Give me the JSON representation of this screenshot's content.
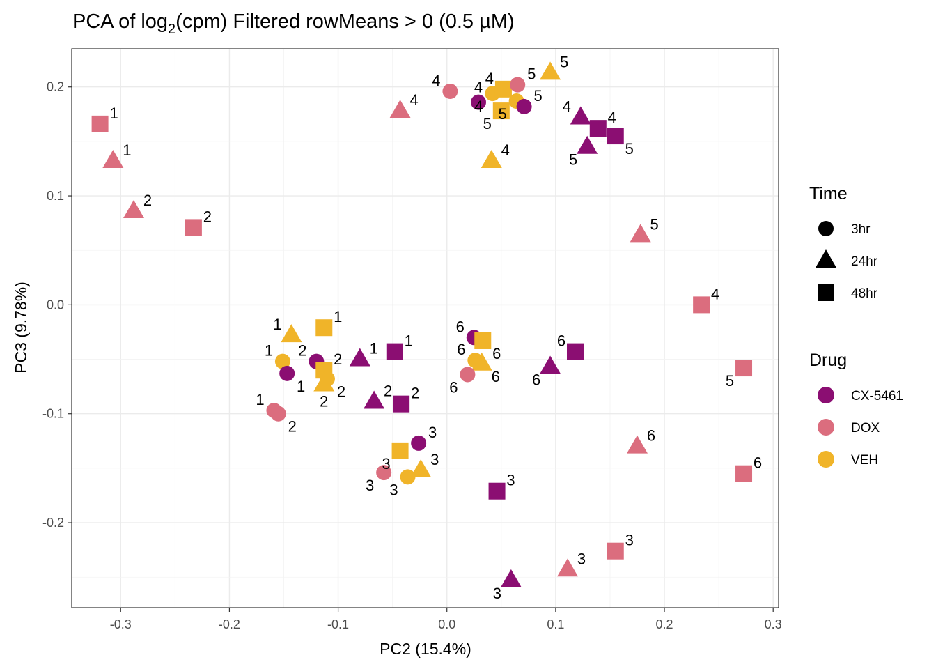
{
  "chart_data": {
    "type": "scatter",
    "title_prefix": "PCA of log",
    "title_subscript": "2",
    "title_suffix": "(cpm) Filtered rowMeans > 0 (0.5 µM)",
    "xlabel": "PC2 (15.4%)",
    "ylabel": "PC3 (9.78%)",
    "xlim": [
      -0.345,
      0.305
    ],
    "ylim": [
      -0.278,
      0.235
    ],
    "xticks": [
      -0.3,
      -0.2,
      -0.1,
      0.0,
      0.1,
      0.2,
      0.3
    ],
    "xtick_labels": [
      "-0.3",
      "-0.2",
      "-0.1",
      "0.0",
      "0.1",
      "0.2",
      "0.3"
    ],
    "yticks": [
      -0.2,
      -0.1,
      0.0,
      0.1,
      0.2
    ],
    "ytick_labels": [
      "-0.2",
      "-0.1",
      "0.0",
      "0.1",
      "0.2"
    ],
    "grid": true,
    "colors": {
      "CX-5461": "#8B0E72",
      "DOX": "#DB6D7E",
      "VEH": "#F0B429"
    },
    "legend": {
      "placement": "right",
      "time_title": "Time",
      "time_items": [
        {
          "label": "3hr",
          "shape": "circle"
        },
        {
          "label": "24hr",
          "shape": "triangle"
        },
        {
          "label": "48hr",
          "shape": "square"
        }
      ],
      "drug_title": "Drug",
      "drug_items": [
        {
          "label": "CX-5461"
        },
        {
          "label": "DOX"
        },
        {
          "label": "VEH"
        }
      ]
    },
    "points": [
      {
        "x": -0.319,
        "y": 0.166,
        "drug": "DOX",
        "time": "48hr",
        "label": "1",
        "pos": "ur"
      },
      {
        "x": -0.307,
        "y": 0.132,
        "drug": "DOX",
        "time": "24hr",
        "label": "1",
        "pos": "ur"
      },
      {
        "x": -0.288,
        "y": 0.086,
        "drug": "DOX",
        "time": "24hr",
        "label": "2",
        "pos": "ur"
      },
      {
        "x": -0.233,
        "y": 0.071,
        "drug": "DOX",
        "time": "48hr",
        "label": "2",
        "pos": "ur"
      },
      {
        "x": -0.043,
        "y": 0.178,
        "drug": "DOX",
        "time": "24hr",
        "label": "4",
        "pos": "ur"
      },
      {
        "x": 0.003,
        "y": 0.196,
        "drug": "DOX",
        "time": "3hr",
        "label": "4",
        "pos": "ul"
      },
      {
        "x": 0.029,
        "y": 0.186,
        "drug": "CX-5461",
        "time": "3hr",
        "label": "4",
        "pos": "u"
      },
      {
        "x": 0.042,
        "y": 0.194,
        "drug": "VEH",
        "time": "3hr",
        "label": "4",
        "pos": "dl"
      },
      {
        "x": 0.052,
        "y": 0.198,
        "drug": "VEH",
        "time": "48hr",
        "label": "4",
        "pos": "ul"
      },
      {
        "x": 0.05,
        "y": 0.178,
        "drug": "VEH",
        "time": "48hr",
        "label": "5",
        "pos": "dl"
      },
      {
        "x": 0.064,
        "y": 0.187,
        "drug": "VEH",
        "time": "3hr",
        "label": "5",
        "pos": "dl"
      },
      {
        "x": 0.065,
        "y": 0.202,
        "drug": "DOX",
        "time": "3hr",
        "label": "5",
        "pos": "ur"
      },
      {
        "x": 0.071,
        "y": 0.182,
        "drug": "CX-5461",
        "time": "3hr",
        "label": "5",
        "pos": "ur"
      },
      {
        "x": 0.095,
        "y": 0.213,
        "drug": "VEH",
        "time": "24hr",
        "label": "5",
        "pos": "ur"
      },
      {
        "x": 0.041,
        "y": 0.132,
        "drug": "VEH",
        "time": "24hr",
        "label": "4",
        "pos": "ur"
      },
      {
        "x": 0.123,
        "y": 0.172,
        "drug": "CX-5461",
        "time": "24hr",
        "label": "4",
        "pos": "ul"
      },
      {
        "x": 0.139,
        "y": 0.162,
        "drug": "CX-5461",
        "time": "48hr",
        "label": "4",
        "pos": "ur"
      },
      {
        "x": 0.155,
        "y": 0.155,
        "drug": "CX-5461",
        "time": "48hr",
        "label": "5",
        "pos": "dr"
      },
      {
        "x": 0.129,
        "y": 0.145,
        "drug": "CX-5461",
        "time": "24hr",
        "label": "5",
        "pos": "dl"
      },
      {
        "x": 0.178,
        "y": 0.064,
        "drug": "DOX",
        "time": "24hr",
        "label": "5",
        "pos": "ur"
      },
      {
        "x": 0.234,
        "y": 0.0,
        "drug": "DOX",
        "time": "48hr",
        "label": "4",
        "pos": "ur"
      },
      {
        "x": 0.273,
        "y": -0.058,
        "drug": "DOX",
        "time": "48hr",
        "label": "5",
        "pos": "dl"
      },
      {
        "x": 0.175,
        "y": -0.13,
        "drug": "DOX",
        "time": "24hr",
        "label": "6",
        "pos": "ur"
      },
      {
        "x": 0.273,
        "y": -0.155,
        "drug": "DOX",
        "time": "48hr",
        "label": "6",
        "pos": "ur"
      },
      {
        "x": -0.143,
        "y": -0.028,
        "drug": "VEH",
        "time": "24hr",
        "label": "1",
        "pos": "ul"
      },
      {
        "x": -0.113,
        "y": -0.021,
        "drug": "VEH",
        "time": "48hr",
        "label": "1",
        "pos": "ur"
      },
      {
        "x": -0.151,
        "y": -0.052,
        "drug": "VEH",
        "time": "3hr",
        "label": "1",
        "pos": "ul"
      },
      {
        "x": -0.147,
        "y": -0.063,
        "drug": "CX-5461",
        "time": "3hr",
        "label": "1",
        "pos": "dr"
      },
      {
        "x": -0.12,
        "y": -0.052,
        "drug": "CX-5461",
        "time": "3hr",
        "label": "2",
        "pos": "ul"
      },
      {
        "x": -0.113,
        "y": -0.06,
        "drug": "VEH",
        "time": "48hr",
        "label": "2",
        "pos": "ur"
      },
      {
        "x": -0.11,
        "y": -0.068,
        "drug": "VEH",
        "time": "3hr",
        "label": "2",
        "pos": "dr"
      },
      {
        "x": -0.113,
        "y": -0.073,
        "drug": "VEH",
        "time": "24hr",
        "label": "2",
        "pos": "d"
      },
      {
        "x": -0.08,
        "y": -0.05,
        "drug": "CX-5461",
        "time": "24hr",
        "label": "1",
        "pos": "ur"
      },
      {
        "x": -0.048,
        "y": -0.043,
        "drug": "CX-5461",
        "time": "48hr",
        "label": "1",
        "pos": "ur"
      },
      {
        "x": -0.067,
        "y": -0.089,
        "drug": "CX-5461",
        "time": "24hr",
        "label": "2",
        "pos": "ur"
      },
      {
        "x": -0.042,
        "y": -0.091,
        "drug": "CX-5461",
        "time": "48hr",
        "label": "2",
        "pos": "ur"
      },
      {
        "x": -0.159,
        "y": -0.097,
        "drug": "DOX",
        "time": "3hr",
        "label": "1",
        "pos": "ul"
      },
      {
        "x": -0.155,
        "y": -0.1,
        "drug": "DOX",
        "time": "3hr",
        "label": "2",
        "pos": "dr"
      },
      {
        "x": 0.025,
        "y": -0.03,
        "drug": "CX-5461",
        "time": "3hr",
        "label": "6",
        "pos": "ul"
      },
      {
        "x": 0.033,
        "y": -0.033,
        "drug": "VEH",
        "time": "48hr",
        "label": "6",
        "pos": "dr"
      },
      {
        "x": 0.026,
        "y": -0.051,
        "drug": "VEH",
        "time": "3hr",
        "label": "6",
        "pos": "ul"
      },
      {
        "x": 0.032,
        "y": -0.054,
        "drug": "VEH",
        "time": "24hr",
        "label": "6",
        "pos": "dr"
      },
      {
        "x": 0.019,
        "y": -0.064,
        "drug": "DOX",
        "time": "3hr",
        "label": "6",
        "pos": "dl"
      },
      {
        "x": 0.095,
        "y": -0.057,
        "drug": "CX-5461",
        "time": "24hr",
        "label": "6",
        "pos": "dl"
      },
      {
        "x": 0.118,
        "y": -0.043,
        "drug": "CX-5461",
        "time": "48hr",
        "label": "6",
        "pos": "ul"
      },
      {
        "x": -0.026,
        "y": -0.127,
        "drug": "CX-5461",
        "time": "3hr",
        "label": "3",
        "pos": "ur"
      },
      {
        "x": -0.043,
        "y": -0.134,
        "drug": "VEH",
        "time": "48hr",
        "label": "3",
        "pos": "dl"
      },
      {
        "x": -0.024,
        "y": -0.152,
        "drug": "VEH",
        "time": "24hr",
        "label": "3",
        "pos": "ur"
      },
      {
        "x": -0.036,
        "y": -0.158,
        "drug": "VEH",
        "time": "3hr",
        "label": "3",
        "pos": "dl"
      },
      {
        "x": -0.058,
        "y": -0.154,
        "drug": "DOX",
        "time": "3hr",
        "label": "3",
        "pos": "dl"
      },
      {
        "x": 0.046,
        "y": -0.171,
        "drug": "CX-5461",
        "time": "48hr",
        "label": "3",
        "pos": "ur"
      },
      {
        "x": 0.059,
        "y": -0.253,
        "drug": "CX-5461",
        "time": "24hr",
        "label": "3",
        "pos": "dl"
      },
      {
        "x": 0.111,
        "y": -0.243,
        "drug": "DOX",
        "time": "24hr",
        "label": "3",
        "pos": "ur"
      },
      {
        "x": 0.155,
        "y": -0.226,
        "drug": "DOX",
        "time": "48hr",
        "label": "3",
        "pos": "ur"
      }
    ]
  }
}
